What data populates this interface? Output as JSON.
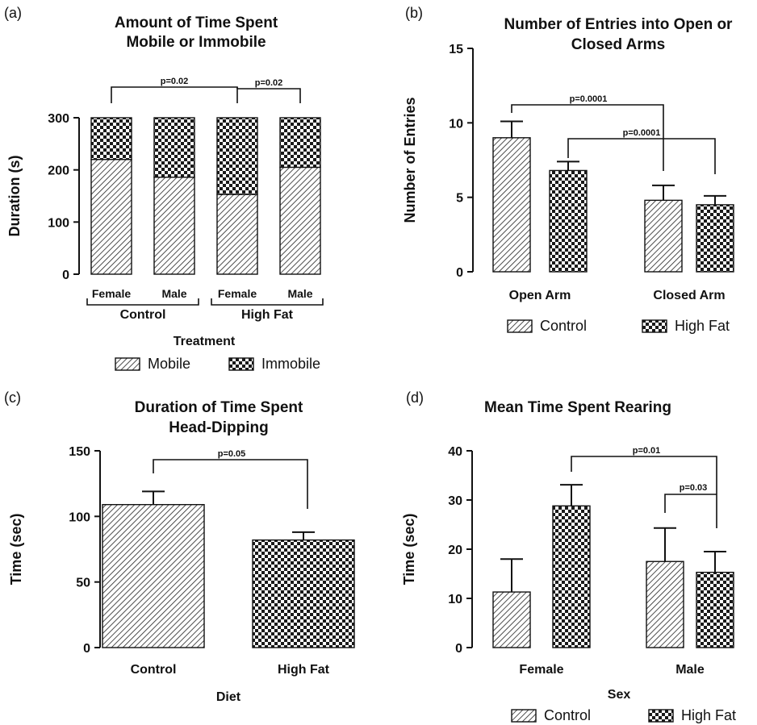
{
  "panels": [
    {
      "label": "(a)",
      "title_lines": [
        "Amount of Time Spent",
        "Mobile or Immobile"
      ]
    },
    {
      "label": "(b)",
      "title_lines": [
        "Number of Entries into Open or",
        "Closed Arms"
      ]
    },
    {
      "label": "(c)",
      "title_lines": [
        "Duration of Time Spent",
        "Head-Dipping"
      ]
    },
    {
      "label": "(d)",
      "title_lines": [
        "Mean Time Spent Rearing"
      ]
    }
  ],
  "chart_data": [
    {
      "type": "bar",
      "stacked": true,
      "title": "Amount of Time Spent Mobile or Immobile",
      "ylabel": "Duration (s)",
      "xlabel": "Treatment",
      "ylim": [
        0,
        300
      ],
      "yticks": [
        0,
        100,
        200,
        300
      ],
      "categories": [
        "Female",
        "Male",
        "Female",
        "Male"
      ],
      "groups": [
        {
          "name": "Control",
          "categories": [
            0,
            1
          ]
        },
        {
          "name": "High Fat",
          "categories": [
            2,
            3
          ]
        }
      ],
      "series": [
        {
          "name": "Mobile",
          "pattern": "hatch",
          "values": [
            220,
            186,
            153,
            205
          ]
        },
        {
          "name": "Immobile",
          "pattern": "checker",
          "values": [
            80,
            114,
            147,
            95
          ]
        }
      ],
      "legend": "bottom",
      "annotations": [
        {
          "text": "p=0.02",
          "from": 0,
          "to": 2
        },
        {
          "text": "p=0.02",
          "from": 2,
          "to": 3
        }
      ]
    },
    {
      "type": "bar",
      "title": "Number of Entries into Open or Closed Arms",
      "ylabel": "Number of Entries",
      "xlabel": "",
      "ylim": [
        0,
        15
      ],
      "yticks": [
        0,
        5,
        10,
        15
      ],
      "categories": [
        "Open Arm",
        "Closed Arm"
      ],
      "series": [
        {
          "name": "Control",
          "pattern": "hatch",
          "values": [
            9.0,
            4.8
          ],
          "errors": [
            1.1,
            1.0
          ]
        },
        {
          "name": "High Fat",
          "pattern": "checker",
          "values": [
            6.8,
            4.5
          ],
          "errors": [
            0.6,
            0.6
          ]
        }
      ],
      "legend": "bottom",
      "annotations": [
        {
          "text": "p=0.0001",
          "from": [
            0,
            0
          ],
          "to": [
            1,
            0
          ]
        },
        {
          "text": "p=0.0001",
          "from": [
            0,
            1
          ],
          "to": [
            1,
            1
          ]
        }
      ]
    },
    {
      "type": "bar",
      "title": "Duration of Time Spent Head-Dipping",
      "ylabel": "Time (sec)",
      "xlabel": "Diet",
      "ylim": [
        0,
        150
      ],
      "yticks": [
        0,
        50,
        100,
        150
      ],
      "categories": [
        "Control",
        "High Fat"
      ],
      "series": [
        {
          "name": "",
          "patterns": [
            "hatch",
            "checker"
          ],
          "values": [
            109,
            82
          ],
          "errors": [
            10,
            6
          ]
        }
      ],
      "annotations": [
        {
          "text": "p=0.05",
          "from": 0,
          "to": 1
        }
      ]
    },
    {
      "type": "bar",
      "title": "Mean Time Spent Rearing",
      "ylabel": "Time (sec)",
      "xlabel": "Sex",
      "ylim": [
        0,
        40
      ],
      "yticks": [
        0,
        10,
        20,
        30,
        40
      ],
      "categories": [
        "Female",
        "Male"
      ],
      "series": [
        {
          "name": "Control",
          "pattern": "hatch",
          "values": [
            11.3,
            17.5
          ],
          "errors": [
            6.7,
            6.8
          ]
        },
        {
          "name": "High Fat",
          "pattern": "checker",
          "values": [
            28.8,
            15.3
          ],
          "errors": [
            4.3,
            4.2
          ]
        }
      ],
      "legend": "bottom",
      "annotations": [
        {
          "text": "p=0.01",
          "from": [
            0,
            1
          ],
          "to": [
            1,
            1
          ]
        },
        {
          "text": "p=0.03",
          "from": [
            1,
            0
          ],
          "to": [
            1,
            1
          ]
        }
      ]
    }
  ]
}
